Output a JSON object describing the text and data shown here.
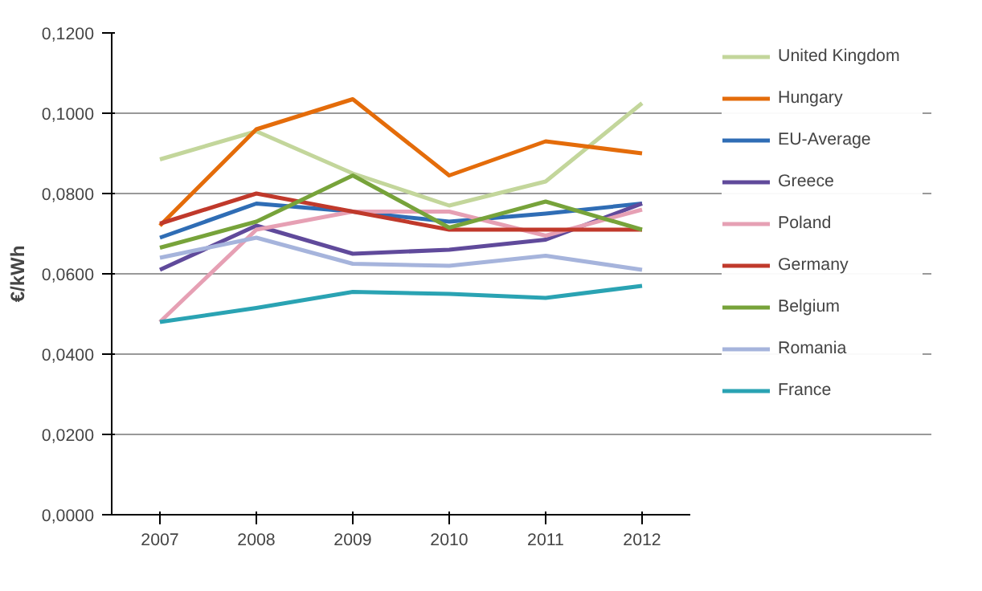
{
  "chart_data": {
    "type": "line",
    "ylabel": "€/kWh",
    "categories": [
      "2007",
      "2008",
      "2009",
      "2010",
      "2011",
      "2012"
    ],
    "ylim": [
      0,
      0.12
    ],
    "yticks": [
      {
        "value": 0,
        "label": "0,0000"
      },
      {
        "value": 0.02,
        "label": "0,0200"
      },
      {
        "value": 0.04,
        "label": "0,0400"
      },
      {
        "value": 0.06,
        "label": "0,0600"
      },
      {
        "value": 0.08,
        "label": "0,0800"
      },
      {
        "value": 0.1,
        "label": "0,1000"
      },
      {
        "value": 0.12,
        "label": "0,1200"
      }
    ],
    "grid": "y",
    "legend": "right",
    "marker": "none",
    "series": [
      {
        "name": "United Kingdom",
        "color": "#c3d69b",
        "values": [
          0.0885,
          0.0955,
          0.085,
          0.077,
          0.083,
          0.1025
        ]
      },
      {
        "name": "Hungary",
        "color": "#e46c0a",
        "values": [
          0.072,
          0.096,
          0.1035,
          0.0845,
          0.093,
          0.09
        ]
      },
      {
        "name": "EU-Average",
        "color": "#2f6db5",
        "values": [
          0.069,
          0.0775,
          0.0755,
          0.073,
          0.075,
          0.0775
        ]
      },
      {
        "name": "Greece",
        "color": "#604a9b",
        "values": [
          0.061,
          0.072,
          0.065,
          0.066,
          0.0685,
          0.0775
        ]
      },
      {
        "name": "Poland",
        "color": "#e6a0b4",
        "values": [
          0.048,
          0.071,
          0.0755,
          0.0755,
          0.0695,
          0.076
        ]
      },
      {
        "name": "Germany",
        "color": "#c0392b",
        "values": [
          0.0725,
          0.08,
          0.0755,
          0.071,
          0.071,
          0.071
        ]
      },
      {
        "name": "Belgium",
        "color": "#77a33a",
        "values": [
          0.0665,
          0.073,
          0.0845,
          0.0715,
          0.078,
          0.071
        ]
      },
      {
        "name": "Romania",
        "color": "#a6b4dc",
        "values": [
          0.064,
          0.069,
          0.0625,
          0.062,
          0.0645,
          0.061
        ]
      },
      {
        "name": "France",
        "color": "#2aa3b3",
        "values": [
          0.048,
          0.0515,
          0.0555,
          0.055,
          0.054,
          0.057
        ]
      }
    ]
  }
}
